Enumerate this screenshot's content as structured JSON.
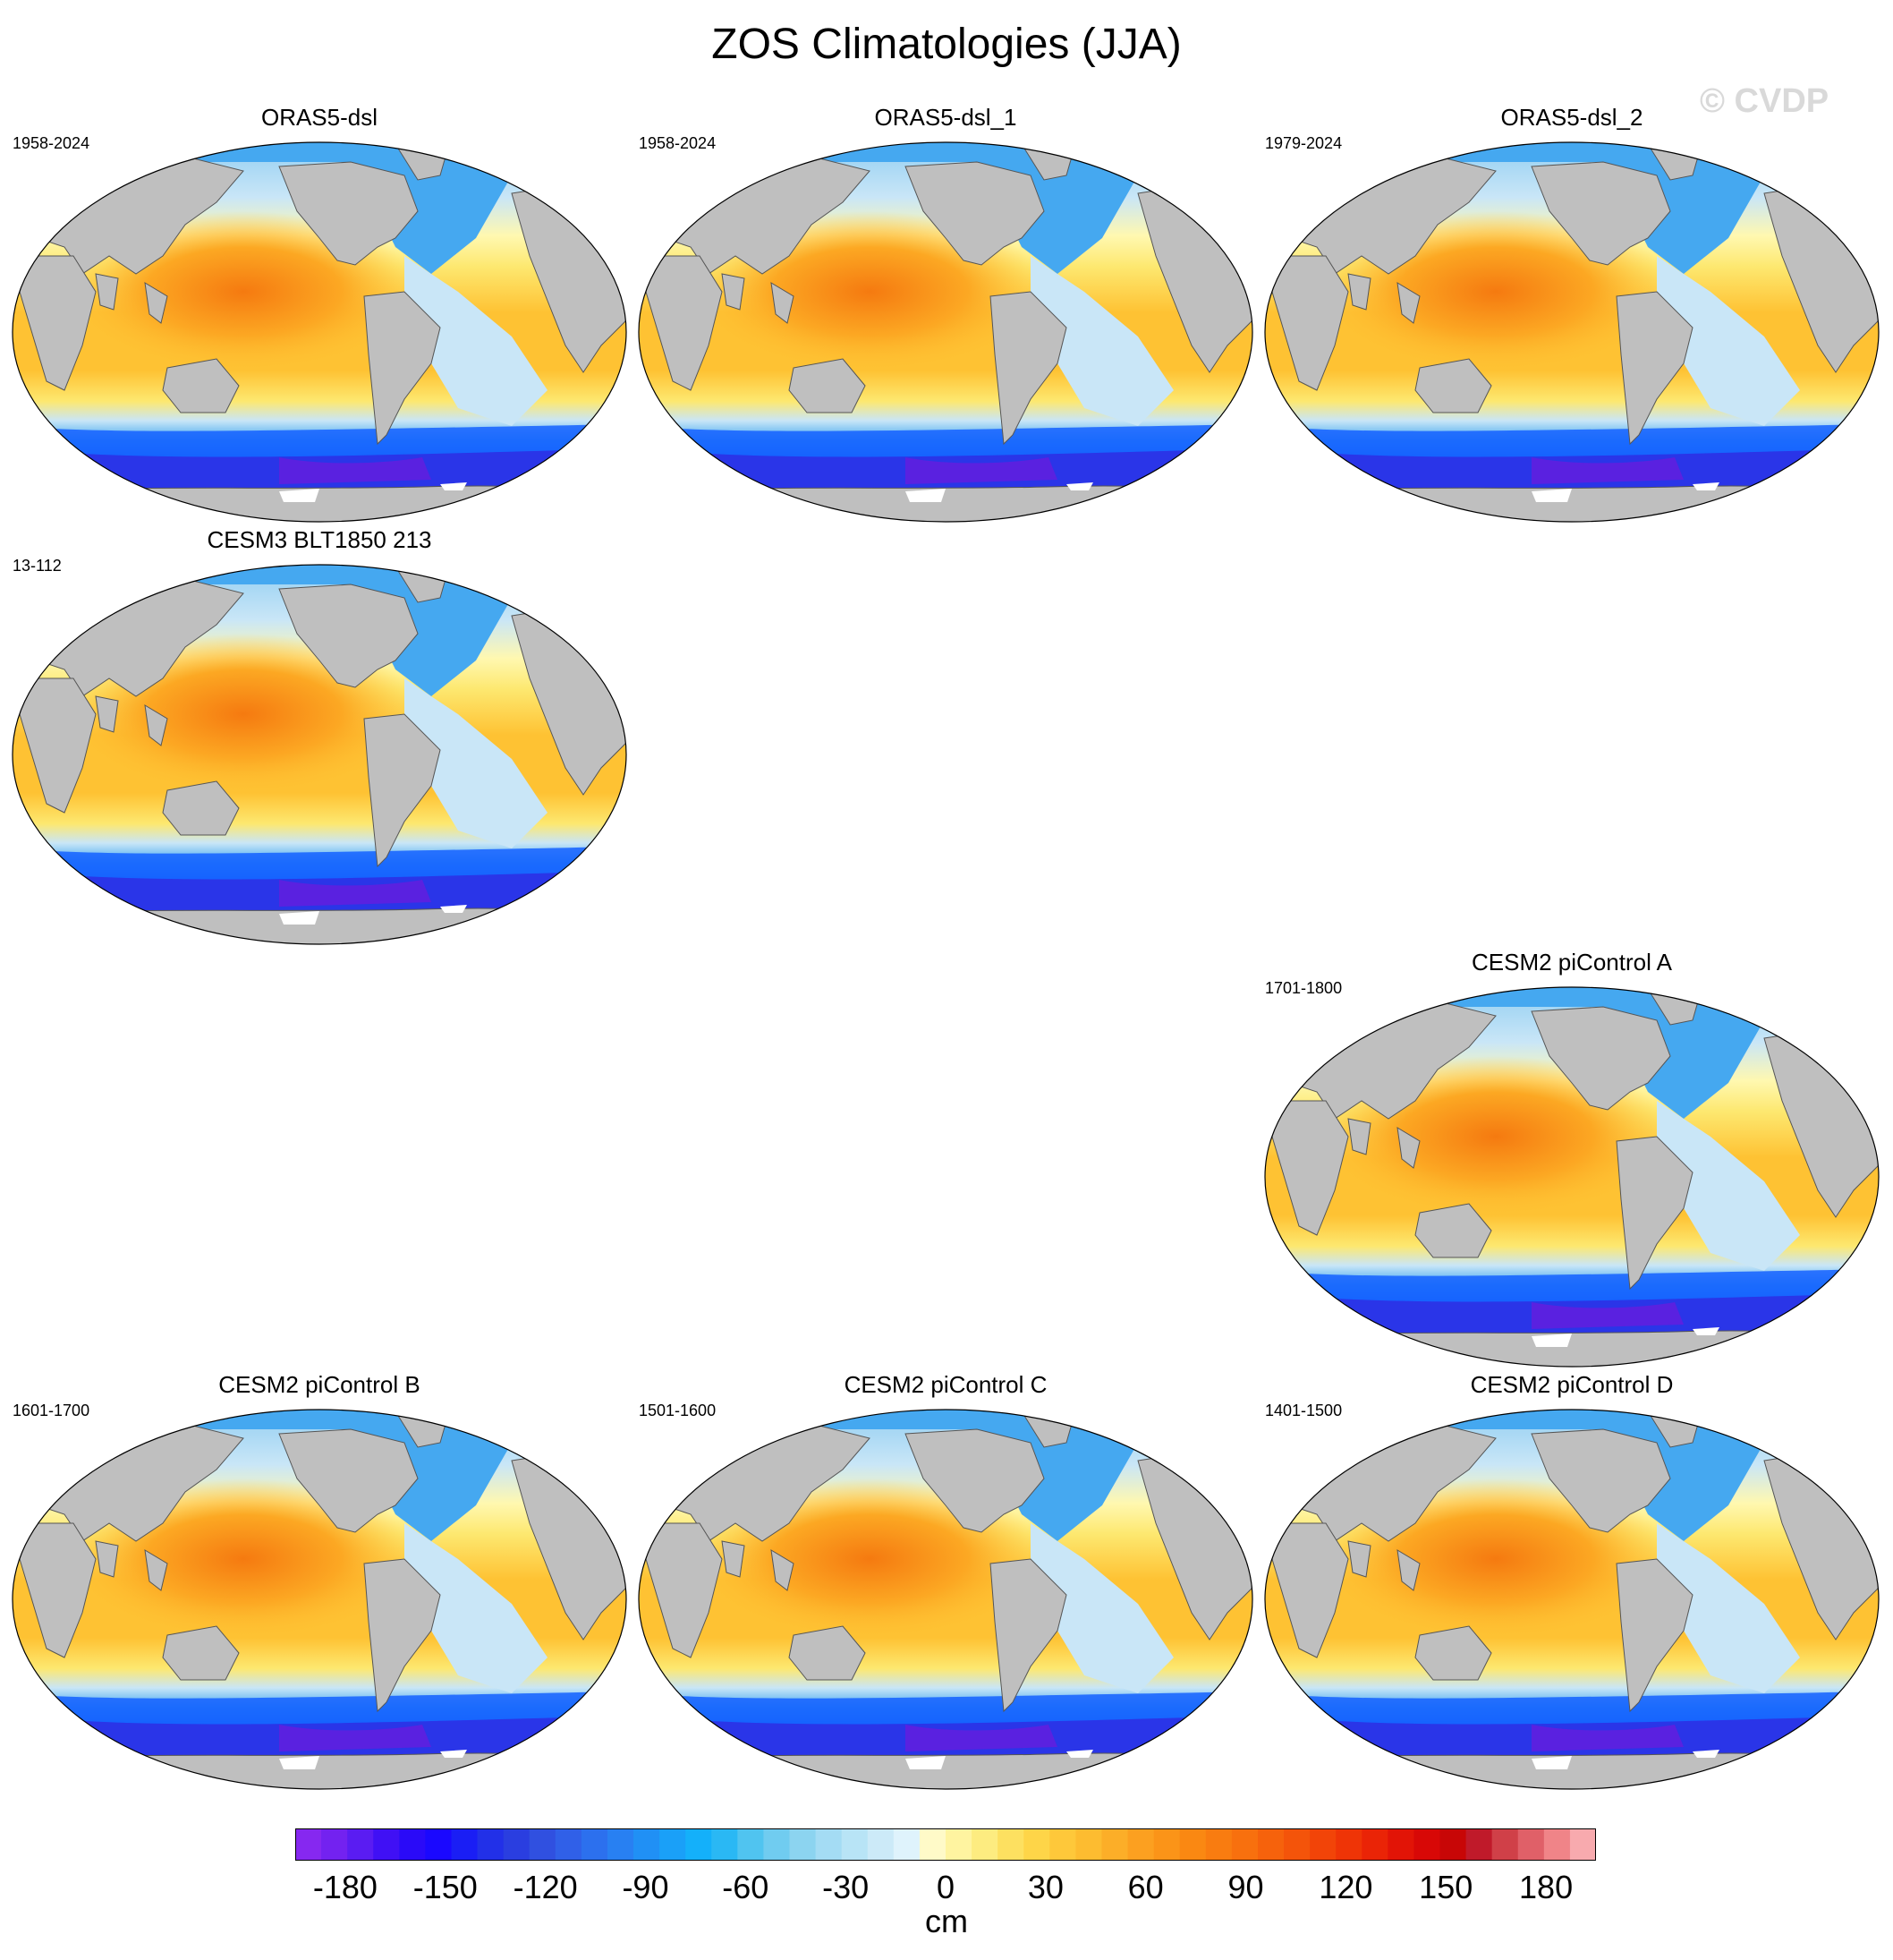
{
  "figure": {
    "title": "ZOS Climatologies (JJA)",
    "watermark": "© CVDP",
    "units": "cm"
  },
  "map_style": {
    "land_color": "#bfbfbf",
    "coast_color": "#555555",
    "pacific_core": "#f57a10",
    "pacific_warm": "#fca823",
    "tropics": "#fec233",
    "subtropics": "#fde870",
    "pale_yellow": "#fff8b0",
    "pale_blue": "#c9e6f7",
    "light_blue": "#8fcdf2",
    "mid_blue": "#45a8f0",
    "deep_blue": "#1460ff",
    "southern_ocean": "#2a35e8",
    "antarctic_core": "#5a21e0"
  },
  "panels": [
    {
      "name": "ORAS5-dsl",
      "years": "1958-2024",
      "col": 0,
      "row": 0
    },
    {
      "name": "ORAS5-dsl_1",
      "years": "1958-2024",
      "col": 1,
      "row": 0
    },
    {
      "name": "ORAS5-dsl_2",
      "years": "1979-2024",
      "col": 2,
      "row": 0
    },
    {
      "name": "CESM3 BLT1850 213",
      "years": "13-112",
      "col": 0,
      "row": 1
    },
    {
      "name": "CESM2 piControl A",
      "years": "1701-1800",
      "col": 2,
      "row": 2
    },
    {
      "name": "CESM2 piControl B",
      "years": "1601-1700",
      "col": 0,
      "row": 3
    },
    {
      "name": "CESM2 piControl C",
      "years": "1501-1600",
      "col": 1,
      "row": 3
    },
    {
      "name": "CESM2 piControl D",
      "years": "1401-1500",
      "col": 2,
      "row": 3
    }
  ],
  "colorbar": {
    "colors": [
      "#8628f0",
      "#7322f0",
      "#5a1cf2",
      "#4010f5",
      "#2a0af8",
      "#1a08ff",
      "#1a1ef5",
      "#2230e8",
      "#2a3ee0",
      "#3050e0",
      "#3060e8",
      "#2c70ee",
      "#2880f2",
      "#2090f5",
      "#1aa0f8",
      "#14b0fa",
      "#2ab8f4",
      "#50c4f0",
      "#70ccf0",
      "#8cd4f0",
      "#a4dcf4",
      "#b8e4f6",
      "#cceaf8",
      "#dff3fc",
      "#fffac8",
      "#fff4a0",
      "#fdec80",
      "#fde060",
      "#fed548",
      "#fec83a",
      "#fdbc30",
      "#fcae28",
      "#fca020",
      "#fb9418",
      "#fa8812",
      "#f97c10",
      "#f8700e",
      "#f6620c",
      "#f4540a",
      "#f24408",
      "#ef3406",
      "#ea2406",
      "#e21406",
      "#d80806",
      "#c80606",
      "#c01a2a",
      "#d04048",
      "#e06068",
      "#f08488",
      "#f8aaae"
    ],
    "tick_values": [
      -180,
      -150,
      -120,
      -90,
      -60,
      -30,
      0,
      30,
      60,
      90,
      120,
      150,
      180
    ],
    "tick_labels": [
      "-180",
      "-150",
      "-120",
      "-90",
      "-60",
      "-30",
      "0",
      "30",
      "60",
      "90",
      "120",
      "150",
      "180"
    ]
  }
}
